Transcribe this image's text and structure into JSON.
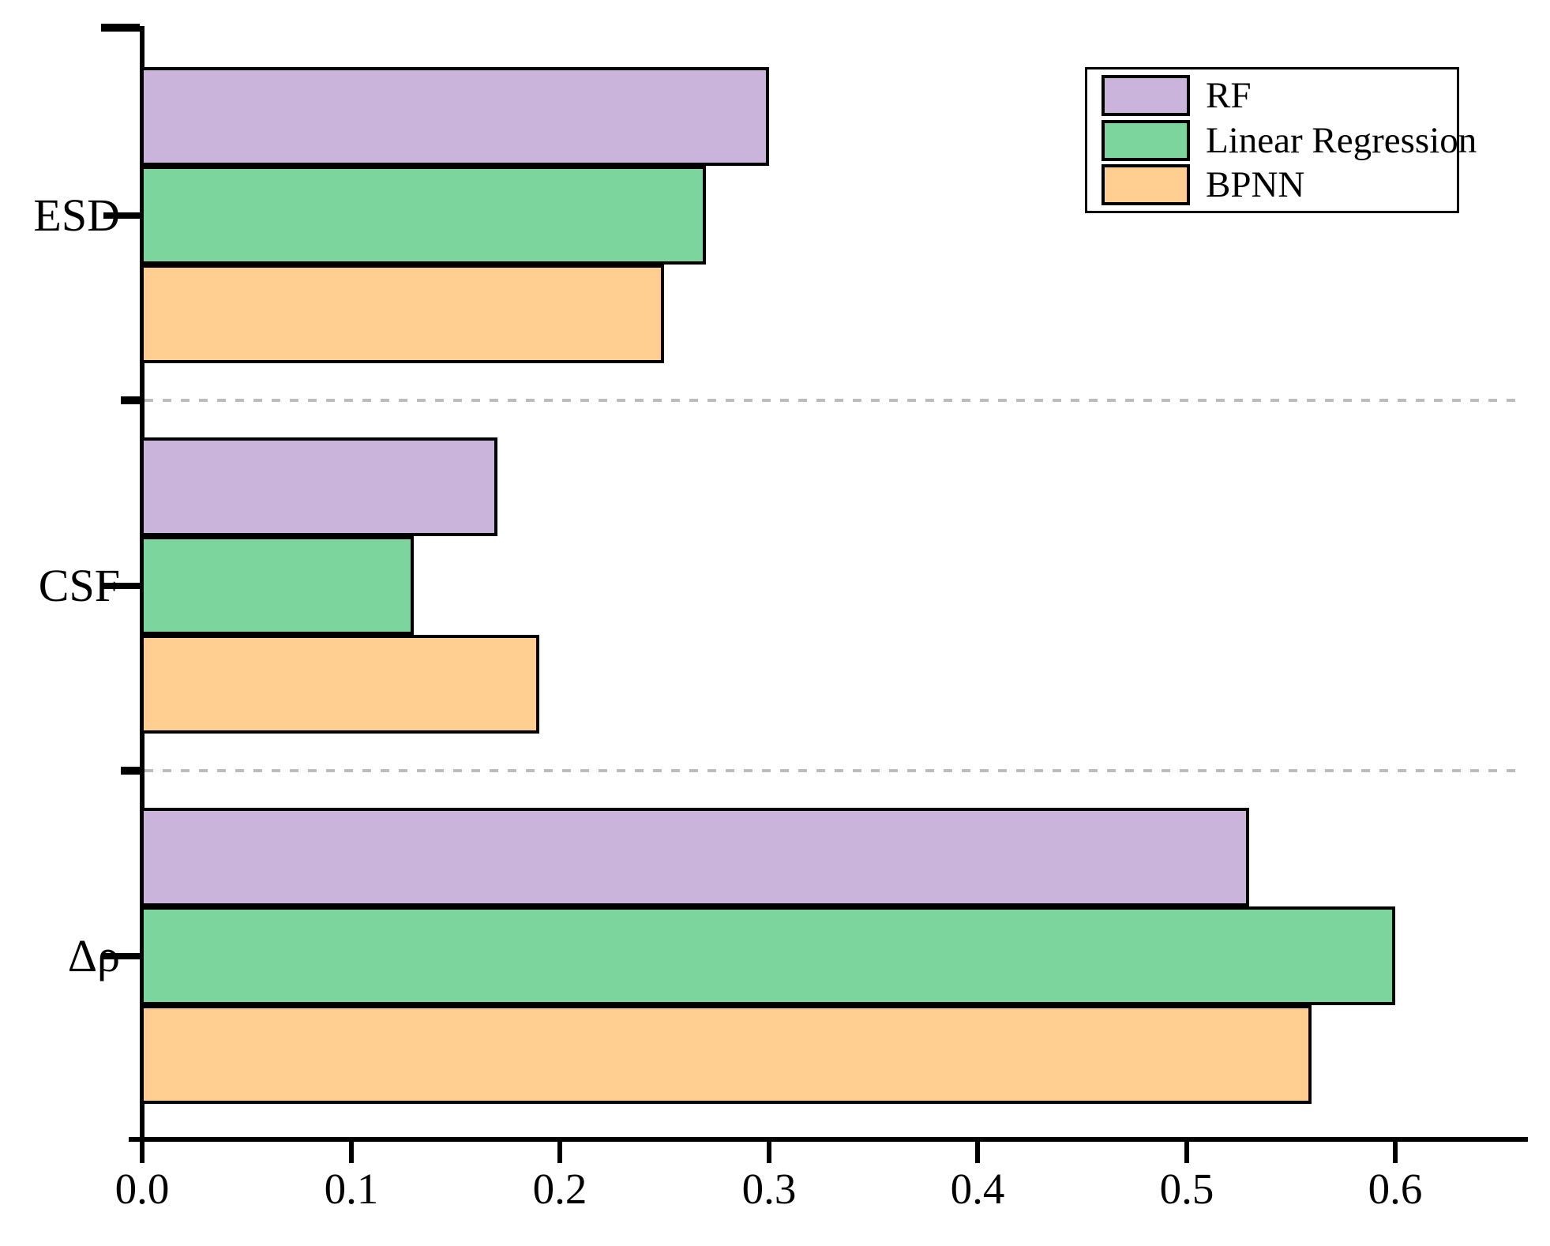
{
  "chart_data": {
    "type": "bar",
    "orientation": "horizontal",
    "title": "",
    "xlabel": "",
    "ylabel": "",
    "categories": [
      "ESD",
      "CSF",
      "Δρ"
    ],
    "series": [
      {
        "name": "RF",
        "color": "#CBB4DC",
        "values": [
          0.3,
          0.17,
          0.53
        ]
      },
      {
        "name": "Linear Regression",
        "color": "#7DD59E",
        "values": [
          0.27,
          0.13,
          0.6
        ]
      },
      {
        "name": "BPNN",
        "color": "#FFCE90",
        "values": [
          0.25,
          0.19,
          0.56
        ]
      }
    ],
    "x_tick_labels": [
      "0.0",
      "0.1",
      "0.2",
      "0.3",
      "0.4",
      "0.5",
      "0.6"
    ],
    "x_tick_values": [
      0.0,
      0.1,
      0.2,
      0.3,
      0.4,
      0.5,
      0.6
    ],
    "xlim": [
      0.0,
      0.663
    ],
    "grid": "dashed horizontal separators between category groups",
    "legend_position": "top-right",
    "legend_entries": [
      "RF",
      "Linear Regression",
      "BPNN"
    ]
  },
  "styles": {
    "axis_color": "#000000",
    "bar_border_color": "#000000",
    "separator_color": "#bcbcbc",
    "background": "#ffffff"
  }
}
